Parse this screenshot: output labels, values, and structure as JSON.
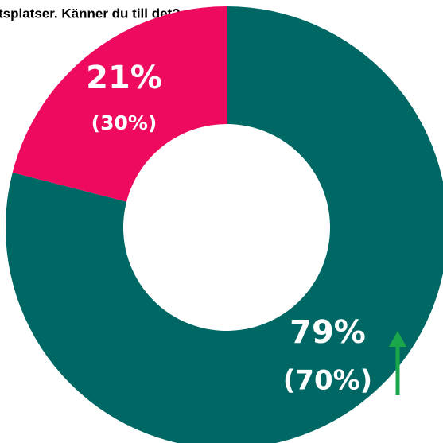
{
  "chart_data": {
    "type": "donut",
    "title": "tsplatser. Känner du till det?",
    "categories": [
      null,
      null
    ],
    "values": [
      79,
      21
    ],
    "value_labels": [
      "79%",
      "21%"
    ],
    "previous_values": [
      70,
      30
    ],
    "previous_value_labels": [
      "(70%)",
      "(30%)"
    ],
    "colors": [
      "#006864",
      "#ee0a5f"
    ]
  }
}
